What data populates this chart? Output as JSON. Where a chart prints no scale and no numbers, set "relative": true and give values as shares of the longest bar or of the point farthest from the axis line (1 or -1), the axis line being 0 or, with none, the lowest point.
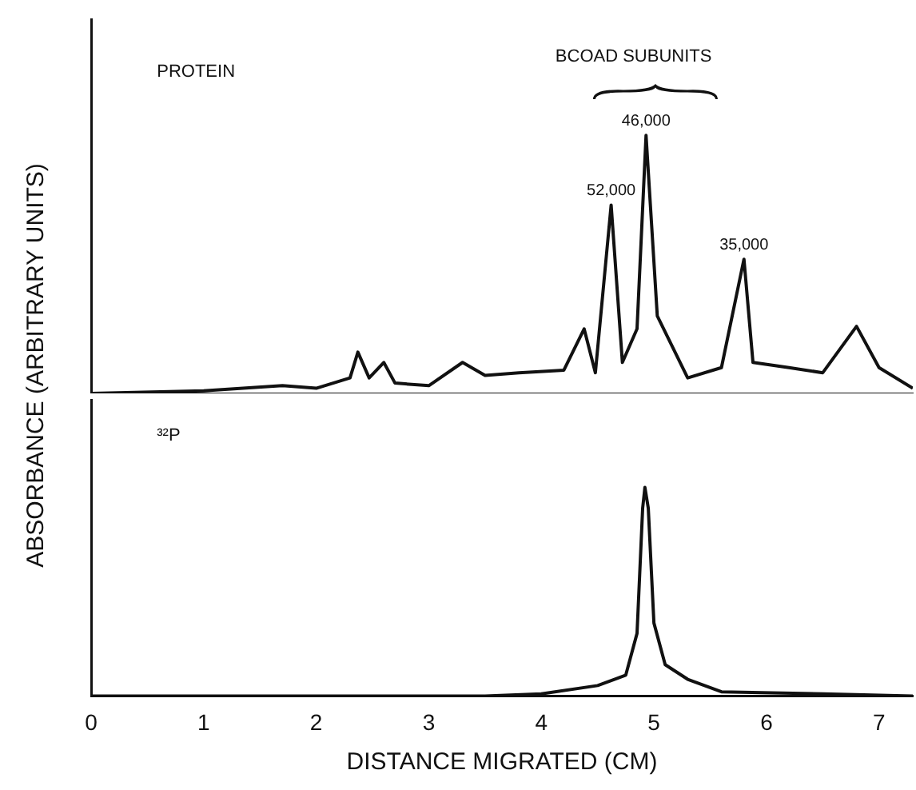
{
  "chart_data": [
    {
      "type": "line",
      "relative": true,
      "ylabel": "ABSORBANCE (ARBITRARY UNITS)",
      "xlim": [
        0,
        7.3
      ],
      "xticks": [
        0,
        1,
        2,
        3,
        4,
        5,
        6,
        7
      ],
      "tick_labels": false,
      "grid": false,
      "legend": false,
      "annotations": [
        "PROTEIN",
        "BCOAD SUBUNITS",
        {
          "text": "52,000",
          "x": 4.62,
          "y": 0.73
        },
        {
          "text": "46,000",
          "x": 4.93,
          "y": 1
        },
        {
          "text": "35,000",
          "x": 5.8,
          "y": 0.52
        }
      ],
      "series": [
        {
          "color": "#111111",
          "x": [
            0,
            1.0,
            1.7,
            2.0,
            2.3,
            2.37,
            2.47,
            2.6,
            2.7,
            3.0,
            3.3,
            3.5,
            3.8,
            4.2,
            4.38,
            4.48,
            4.62,
            4.72,
            4.85,
            4.93,
            5.03,
            5.3,
            5.6,
            5.8,
            5.88,
            6.2,
            6.5,
            6.8,
            7.0,
            7.3
          ],
          "values": [
            0,
            0.01,
            0.03,
            0.02,
            0.06,
            0.16,
            0.06,
            0.12,
            0.04,
            0.03,
            0.12,
            0.07,
            0.08,
            0.09,
            0.25,
            0.08,
            0.73,
            0.12,
            0.25,
            1.0,
            0.3,
            0.06,
            0.1,
            0.52,
            0.12,
            0.1,
            0.08,
            0.26,
            0.1,
            0.02
          ]
        }
      ]
    },
    {
      "type": "line",
      "relative": true,
      "xlabel": "DISTANCE MIGRATED (CM)",
      "xlim": [
        0,
        7.3
      ],
      "xticks": [
        0,
        1,
        2,
        3,
        4,
        5,
        6,
        7
      ],
      "tick_labels": "x",
      "grid": false,
      "legend": false,
      "annotations": [
        "³²P"
      ],
      "series": [
        {
          "color": "#111111",
          "x": [
            0,
            3.5,
            4.0,
            4.5,
            4.75,
            4.85,
            4.9,
            4.92,
            4.95,
            5.0,
            5.1,
            5.3,
            5.6,
            6.5,
            7.3
          ],
          "values": [
            0,
            0,
            0.01,
            0.05,
            0.1,
            0.3,
            0.9,
            1,
            0.9,
            0.35,
            0.15,
            0.08,
            0.02,
            0.01,
            0
          ]
        }
      ]
    }
  ]
}
